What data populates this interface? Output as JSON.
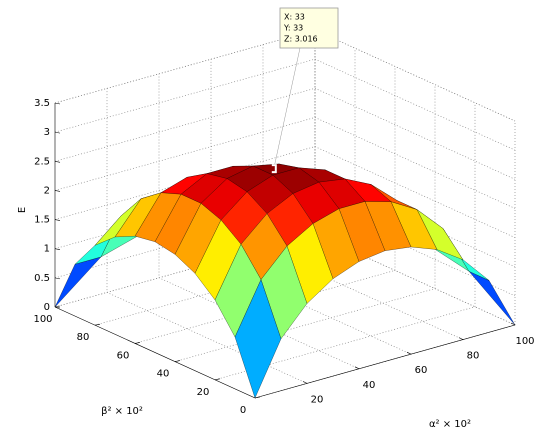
{
  "chart_data": {
    "type": "surface",
    "xlabel": "α² × 10²",
    "ylabel": "β² × 10²",
    "zlabel": "E",
    "x": [
      0,
      10,
      20,
      30,
      40,
      50,
      60,
      70,
      80,
      90,
      100
    ],
    "y": [
      0,
      10,
      20,
      30,
      40,
      50,
      60,
      70,
      80,
      90,
      100
    ],
    "z": [
      [
        0,
        0.89,
        1.37,
        1.67,
        1.84,
        1.9,
        1.84,
        1.67,
        1.37,
        0.89,
        0
      ],
      [
        0.89,
        1.75,
        2.2,
        2.46,
        2.59,
        2.59,
        2.46,
        2.2,
        1.75,
        0.89,
        null
      ],
      [
        1.37,
        2.2,
        2.6,
        2.82,
        2.89,
        2.82,
        2.6,
        2.2,
        1.37,
        null,
        null
      ],
      [
        1.67,
        2.46,
        2.82,
        2.98,
        2.98,
        2.82,
        2.46,
        1.67,
        null,
        null,
        null
      ],
      [
        1.84,
        2.59,
        2.89,
        2.98,
        2.89,
        2.59,
        1.84,
        null,
        null,
        null,
        null
      ],
      [
        1.9,
        2.59,
        2.82,
        2.82,
        2.59,
        1.9,
        null,
        null,
        null,
        null,
        null
      ],
      [
        1.84,
        2.46,
        2.6,
        2.46,
        1.84,
        null,
        null,
        null,
        null,
        null,
        null
      ],
      [
        1.67,
        2.2,
        2.2,
        1.67,
        null,
        null,
        null,
        null,
        null,
        null,
        null
      ],
      [
        1.37,
        1.75,
        1.37,
        null,
        null,
        null,
        null,
        null,
        null,
        null,
        null
      ],
      [
        0.89,
        0.89,
        null,
        null,
        null,
        null,
        null,
        null,
        null,
        null,
        null
      ],
      [
        0,
        null,
        null,
        null,
        null,
        null,
        null,
        null,
        null,
        null,
        null
      ]
    ],
    "xlim": [
      0,
      100
    ],
    "ylim": [
      0,
      100
    ],
    "zlim": [
      0,
      3.5
    ],
    "xticks": [
      20,
      40,
      60,
      80,
      100
    ],
    "yticks": [
      0,
      20,
      40,
      60,
      80,
      100
    ],
    "zticks": [
      0,
      0.5,
      1,
      1.5,
      2,
      2.5,
      3,
      3.5
    ],
    "clim": [
      0,
      3
    ],
    "colormap": "jet",
    "grid": true,
    "datatip": {
      "x": 33,
      "y": 33,
      "z": 3.016,
      "labels": [
        "X: 33",
        "Y: 33",
        "Z: 3.016"
      ]
    }
  }
}
